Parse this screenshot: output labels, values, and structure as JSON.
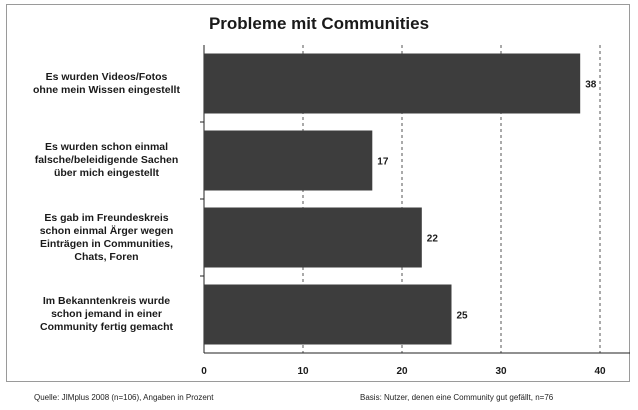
{
  "chart_data": {
    "type": "bar",
    "orientation": "horizontal",
    "title": "Probleme mit Communities",
    "categories": [
      "Es wurden Videos/Fotos\nohne mein Wissen eingestellt",
      "Es wurden schon einmal\nfalsche/beleidigende Sachen\nüber mich eingestellt",
      "Es gab im Freundeskreis\nschon einmal Ärger wegen\nEinträgen in Communities,\nChats, Foren",
      "Im Bekanntenkreis wurde\nschon jemand in einer\nCommunity fertig gemacht"
    ],
    "values": [
      38,
      17,
      22,
      25
    ],
    "xlim": [
      0,
      40
    ],
    "xticks": [
      0,
      10,
      20,
      30,
      40
    ],
    "grid": "vertical dashed",
    "bar_color": "#3d3d3d"
  },
  "footer": {
    "source": "Quelle: JIMplus 2008 (n=106), Angaben in Prozent",
    "basis": "Basis: Nutzer, denen eine Community gut gefällt, n=76"
  }
}
